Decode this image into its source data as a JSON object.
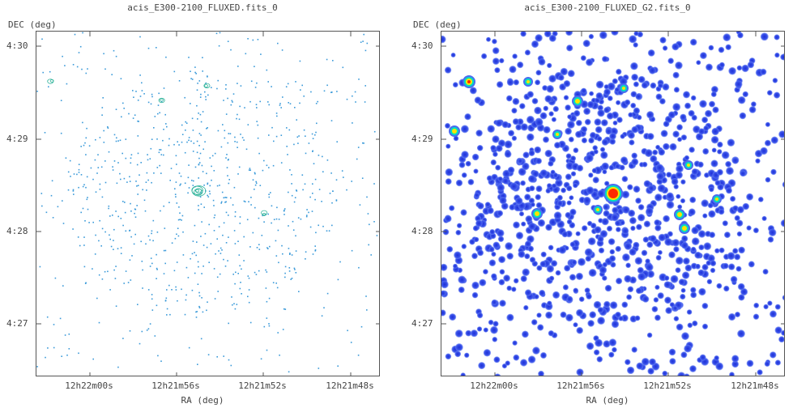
{
  "panels": [
    {
      "title": "acis_E300-2100_FLUXED.fits_0",
      "ylabel": "DEC (deg)",
      "xlabel": "RA (deg)",
      "yticks": [
        "4:30",
        "4:29",
        "4:28",
        "4:27"
      ],
      "xticks": [
        "12h22m00s",
        "12h21m56s",
        "12h21m52s",
        "12h21m48s"
      ],
      "style": "sparse-contour",
      "colors": {
        "frame": "#555555",
        "points": "#3a9ad9",
        "source": "#2fb39a"
      }
    },
    {
      "title": "acis_E300-2100_FLUXED_G2.fits_0",
      "ylabel": "DEC (deg)",
      "xlabel": "RA (deg)",
      "yticks": [
        "4:30",
        "4:29",
        "4:28",
        "4:27"
      ],
      "xticks": [
        "12h22m00s",
        "12h21m56s",
        "12h21m52s",
        "12h21m48s"
      ],
      "style": "smoothed-filled",
      "colors": {
        "frame": "#555555",
        "points": "#2f3ee0",
        "halo": "#4a6cf0",
        "hot": "#ff2a00",
        "warm": "#ffe400",
        "mid": "#00e0c0"
      }
    }
  ]
}
